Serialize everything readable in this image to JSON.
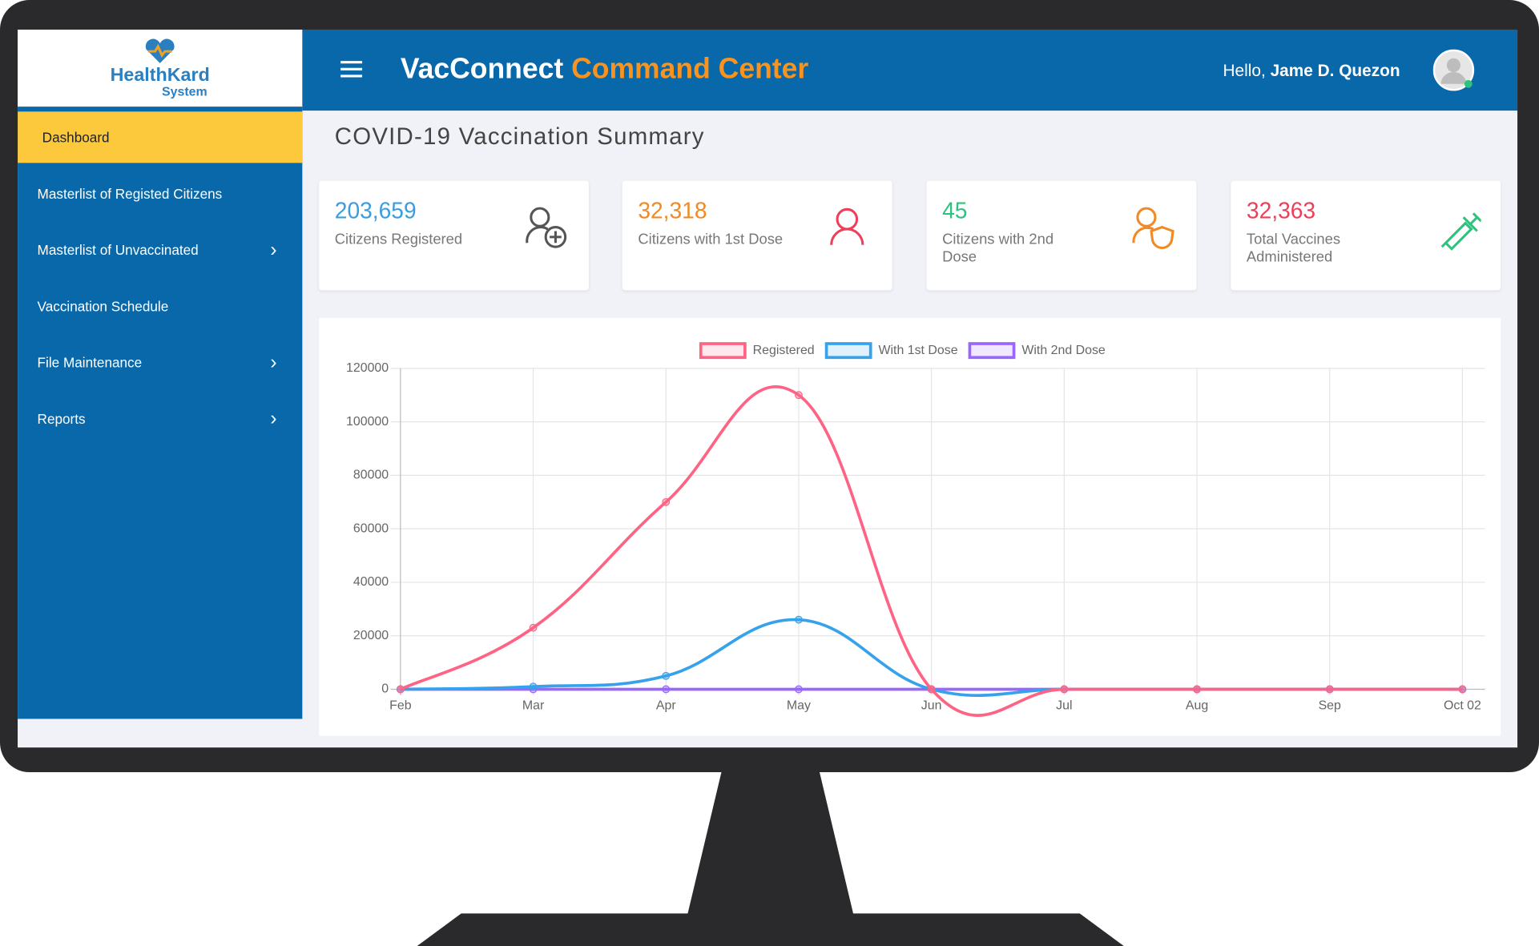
{
  "sidebar": {
    "logo": {
      "name_part1": "Health",
      "name_part2": "Kard",
      "subtitle": "System"
    },
    "menu": [
      {
        "label": "Dashboard"
      },
      {
        "label": "Masterlist of Registed Citizens"
      },
      {
        "label": "Masterlist of Unvaccinated"
      },
      {
        "label": "Vaccination Schedule"
      },
      {
        "label": "File Maintenance"
      },
      {
        "label": "Reports"
      }
    ]
  },
  "header": {
    "brand_part1": "VacConnect",
    "brand_part2": "Command Center",
    "greeting": "Hello,",
    "user": "Jame D. Quezon"
  },
  "page_title": "COVID-19 Vaccination Summary",
  "cards": [
    {
      "value": "203,659",
      "label": "Citizens Registered"
    },
    {
      "value": "32,318",
      "label": "Citizens with 1st Dose"
    },
    {
      "value": "45",
      "label": "Citizens with 2nd Dose"
    },
    {
      "value": "32,363",
      "label": "Total Vaccines Administered"
    }
  ],
  "chart_data": {
    "type": "line",
    "categories": [
      "Feb",
      "Mar",
      "Apr",
      "May",
      "Jun",
      "Jul",
      "Aug",
      "Sep",
      "Oct 02"
    ],
    "series": [
      {
        "name": "Registered",
        "color": "#ff6384",
        "values": [
          0,
          23000,
          70000,
          110000,
          0,
          0,
          0,
          0,
          0
        ]
      },
      {
        "name": "With 1st Dose",
        "color": "#36a2eb",
        "values": [
          0,
          1000,
          5000,
          26000,
          0,
          0,
          0,
          0,
          0
        ]
      },
      {
        "name": "With 2nd Dose",
        "color": "#9966ff",
        "values": [
          0,
          0,
          0,
          0,
          0,
          0,
          0,
          0,
          0
        ]
      }
    ],
    "ylim": [
      0,
      120000
    ],
    "yticks": [
      0,
      20000,
      40000,
      60000,
      80000,
      100000,
      120000
    ],
    "grid": true,
    "legend": "top"
  }
}
